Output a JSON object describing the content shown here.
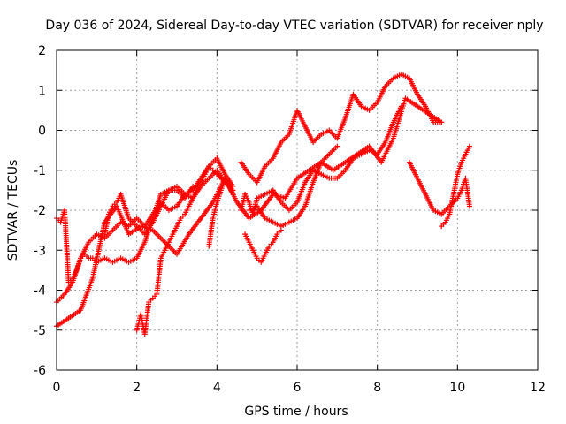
{
  "chart_data": {
    "type": "scatter",
    "title": "Day 036 of 2024, Sidereal Day-to-day VTEC variation (SDTVAR) for receiver nply",
    "xlabel": "GPS time / hours",
    "ylabel": "SDTVAR / TECUs",
    "xlim": [
      0,
      12
    ],
    "ylim": [
      -6,
      2
    ],
    "x_ticks": [
      0,
      2,
      4,
      6,
      8,
      10,
      12
    ],
    "y_ticks": [
      -6,
      -5,
      -4,
      -3,
      -2,
      -1,
      0,
      1,
      2
    ],
    "x_tick_labels": [
      "0",
      "2",
      "4",
      "6",
      "8",
      "10",
      "12"
    ],
    "y_tick_labels": [
      "-6",
      "-5",
      "-4",
      "-3",
      "-2",
      "-1",
      "0",
      "1",
      "2"
    ],
    "grid": true,
    "legend": "none",
    "marker": "plus",
    "color": "#ff0000",
    "series": [
      {
        "x": [
          0.0,
          0.1,
          0.2,
          0.3,
          0.4,
          0.5,
          0.6,
          0.7,
          0.8,
          0.9,
          1.0,
          1.2,
          1.4,
          1.6,
          1.8,
          2.0,
          2.2,
          2.4,
          2.6,
          2.8,
          3.0,
          3.2,
          3.4,
          3.6,
          3.8,
          4.0,
          4.2,
          4.4
        ],
        "y": [
          -2.2,
          -2.3,
          -2.0,
          -3.8,
          -3.7,
          -3.5,
          -3.2,
          -3.1,
          -3.2,
          -3.2,
          -3.3,
          -3.2,
          -3.3,
          -3.2,
          -3.3,
          -3.2,
          -2.8,
          -2.2,
          -1.6,
          -1.5,
          -1.4,
          -1.6,
          -1.5,
          -1.2,
          -0.9,
          -0.7,
          -1.1,
          -1.4
        ]
      },
      {
        "x": [
          0.0,
          0.2,
          0.4,
          0.6,
          0.8,
          1.0,
          1.2,
          1.4,
          1.6,
          1.8,
          2.0,
          2.2,
          2.4,
          2.6,
          2.8,
          3.0,
          3.2,
          3.4,
          3.6,
          3.8,
          4.0,
          4.2
        ],
        "y": [
          -4.3,
          -4.1,
          -3.8,
          -3.2,
          -2.8,
          -2.6,
          -2.7,
          -2.5,
          -2.3,
          -2.4,
          -2.2,
          -2.4,
          -2.1,
          -1.8,
          -2.0,
          -1.9,
          -1.6,
          -1.7,
          -1.4,
          -1.2,
          -1.0,
          -1.3
        ]
      },
      {
        "x": [
          0.0,
          0.3,
          0.6,
          0.9,
          1.2,
          1.5,
          1.8,
          2.1,
          2.4,
          2.7,
          3.0,
          3.3,
          3.6,
          3.9,
          4.2,
          4.5,
          4.8,
          5.1,
          5.4,
          5.7,
          6.0,
          6.3,
          6.6,
          6.9,
          7.2,
          7.5,
          7.8,
          8.1,
          8.4,
          8.7,
          9.0,
          9.3,
          9.6
        ],
        "y": [
          -4.9,
          -4.7,
          -4.5,
          -3.7,
          -2.3,
          -1.9,
          -2.6,
          -2.4,
          -2.5,
          -2.8,
          -3.1,
          -2.6,
          -2.2,
          -1.8,
          -1.2,
          -1.8,
          -2.2,
          -2.0,
          -1.6,
          -1.7,
          -1.2,
          -1.0,
          -0.8,
          -1.0,
          -0.8,
          -0.6,
          -0.4,
          -0.8,
          -0.2,
          0.8,
          0.6,
          0.4,
          0.2
        ]
      },
      {
        "x": [
          1.2,
          1.3,
          1.4,
          1.5,
          1.6,
          1.8,
          2.0,
          2.2,
          2.4,
          2.6,
          2.8,
          3.0,
          3.2,
          3.4
        ],
        "y": [
          -2.6,
          -2.1,
          -1.9,
          -1.8,
          -1.6,
          -2.2,
          -2.4,
          -2.6,
          -2.3,
          -1.9,
          -1.5,
          -1.5,
          -1.7,
          -1.4
        ]
      },
      {
        "x": [
          2.0,
          2.1,
          2.2,
          2.3,
          2.4,
          2.5,
          2.6,
          2.7,
          2.8,
          2.9,
          3.0,
          3.1,
          3.2,
          3.3,
          3.4,
          3.5,
          3.6,
          3.7,
          3.8,
          3.9,
          4.0,
          4.2,
          4.4
        ],
        "y": [
          -5.0,
          -4.6,
          -5.1,
          -4.3,
          -4.2,
          -4.1,
          -3.2,
          -3.0,
          -2.8,
          -2.6,
          -2.4,
          -2.2,
          -2.1,
          -1.9,
          -1.7,
          -1.5,
          -1.3,
          -1.1,
          -0.9,
          -1.0,
          -1.1,
          -1.3,
          -1.5
        ]
      },
      {
        "x": [
          3.8,
          3.9,
          4.0,
          4.1,
          4.2,
          4.3,
          4.4
        ],
        "y": [
          -2.9,
          -2.2,
          -1.8,
          -1.5,
          -1.2,
          -1.4,
          -1.6
        ]
      },
      {
        "x": [
          4.6,
          4.8,
          5.0,
          5.2,
          5.4,
          5.6,
          5.8,
          6.0,
          6.2,
          6.4,
          6.6,
          6.8,
          7.0,
          7.2,
          7.4,
          7.6,
          7.8,
          8.0,
          8.2,
          8.4,
          8.6,
          8.8,
          9.0,
          9.2,
          9.4,
          9.6
        ],
        "y": [
          -0.8,
          -1.1,
          -1.3,
          -0.9,
          -0.7,
          -0.3,
          -0.1,
          0.5,
          0.1,
          -0.3,
          -0.1,
          0.0,
          -0.2,
          0.3,
          0.9,
          0.6,
          0.5,
          0.7,
          1.1,
          1.3,
          1.4,
          1.3,
          0.9,
          0.6,
          0.2,
          0.2
        ]
      },
      {
        "x": [
          4.6,
          4.7,
          4.8,
          4.9,
          5.0,
          5.2,
          5.4,
          5.6,
          5.8,
          6.0,
          6.2,
          6.4,
          6.6,
          6.8,
          7.0,
          7.2,
          7.4,
          7.6,
          7.8,
          8.0,
          8.2,
          8.4,
          8.6
        ],
        "y": [
          -2.0,
          -1.6,
          -1.8,
          -2.1,
          -1.7,
          -1.6,
          -1.5,
          -1.8,
          -2.0,
          -1.8,
          -1.3,
          -1.0,
          -1.1,
          -1.2,
          -1.2,
          -1.0,
          -0.7,
          -0.6,
          -0.5,
          -0.6,
          -0.3,
          0.2,
          0.6
        ]
      },
      {
        "x": [
          4.7,
          4.8,
          4.9,
          5.0,
          5.1,
          5.2,
          5.3,
          5.4,
          5.5,
          5.6
        ],
        "y": [
          -2.6,
          -2.8,
          -3.0,
          -3.2,
          -3.3,
          -3.1,
          -2.9,
          -2.8,
          -2.6,
          -2.5
        ]
      },
      {
        "x": [
          4.8,
          5.0,
          5.2,
          5.4,
          5.6,
          5.8,
          6.0,
          6.2,
          6.4,
          6.6,
          6.8,
          7.0
        ],
        "y": [
          -2.0,
          -1.9,
          -2.2,
          -2.3,
          -2.4,
          -2.3,
          -2.2,
          -1.9,
          -1.3,
          -0.8,
          -0.6,
          -0.4
        ]
      },
      {
        "x": [
          8.8,
          9.0,
          9.2,
          9.4,
          9.6,
          9.8,
          10.0,
          10.1,
          10.2,
          10.3
        ],
        "y": [
          -0.8,
          -1.2,
          -1.6,
          -2.0,
          -2.1,
          -1.9,
          -1.7,
          -1.5,
          -1.2,
          -1.9
        ]
      },
      {
        "x": [
          9.6,
          9.7,
          9.8,
          9.9,
          10.0,
          10.1,
          10.2,
          10.3
        ],
        "y": [
          -2.4,
          -2.3,
          -2.1,
          -1.6,
          -1.1,
          -0.8,
          -0.6,
          -0.4
        ]
      }
    ]
  }
}
